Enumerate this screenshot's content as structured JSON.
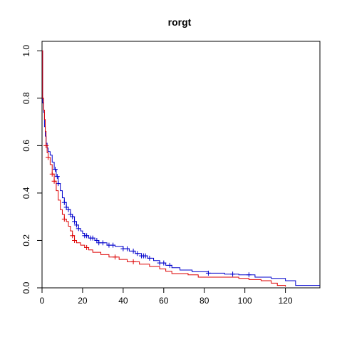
{
  "chart_data": {
    "type": "line",
    "subtype": "kaplan-meier",
    "title": "rorgt",
    "xlabel": "",
    "ylabel": "",
    "xlim": [
      0,
      137
    ],
    "ylim": [
      0,
      1.04
    ],
    "x_ticks": [
      0,
      20,
      40,
      60,
      80,
      100,
      120
    ],
    "y_ticks": [
      0.0,
      0.2,
      0.4,
      0.6,
      0.8,
      1.0
    ],
    "x_tick_labels": [
      "0",
      "20",
      "40",
      "60",
      "80",
      "100",
      "120"
    ],
    "y_tick_labels": [
      "0.0",
      "0.2",
      "0.4",
      "0.6",
      "0.8",
      "1.0"
    ],
    "grid": false,
    "series": [
      {
        "color": "#0000cc",
        "steps": [
          [
            0,
            1.0
          ],
          [
            0.3,
            0.78
          ],
          [
            0.8,
            0.74
          ],
          [
            1.2,
            0.68
          ],
          [
            1.6,
            0.64
          ],
          [
            2.0,
            0.61
          ],
          [
            2.5,
            0.59
          ],
          [
            3.0,
            0.575
          ],
          [
            4.0,
            0.56
          ],
          [
            5.0,
            0.53
          ],
          [
            6.0,
            0.5
          ],
          [
            7.0,
            0.47
          ],
          [
            8.0,
            0.44
          ],
          [
            9.0,
            0.41
          ],
          [
            10.0,
            0.38
          ],
          [
            11.0,
            0.36
          ],
          [
            12.0,
            0.34
          ],
          [
            13.0,
            0.33
          ],
          [
            14.0,
            0.31
          ],
          [
            15.0,
            0.3
          ],
          [
            16.0,
            0.28
          ],
          [
            17.0,
            0.265
          ],
          [
            18.0,
            0.25
          ],
          [
            19.0,
            0.24
          ],
          [
            20.0,
            0.23
          ],
          [
            21.0,
            0.22
          ],
          [
            23.0,
            0.21
          ],
          [
            26.0,
            0.2
          ],
          [
            28.0,
            0.19
          ],
          [
            32.0,
            0.18
          ],
          [
            36.0,
            0.175
          ],
          [
            40.0,
            0.165
          ],
          [
            43.0,
            0.155
          ],
          [
            46.0,
            0.145
          ],
          [
            49.0,
            0.135
          ],
          [
            52.0,
            0.125
          ],
          [
            55.0,
            0.115
          ],
          [
            58.0,
            0.105
          ],
          [
            61.0,
            0.095
          ],
          [
            64.0,
            0.085
          ],
          [
            68.0,
            0.075
          ],
          [
            74.0,
            0.068
          ],
          [
            82.0,
            0.062
          ],
          [
            90.0,
            0.058
          ],
          [
            97.0,
            0.055
          ],
          [
            105.0,
            0.045
          ],
          [
            113.0,
            0.04
          ],
          [
            120.0,
            0.03
          ],
          [
            125.0,
            0.01
          ],
          [
            137.0,
            0.01
          ]
        ],
        "censor_x": [
          6.5,
          7.5,
          8.0,
          11.0,
          12.0,
          13.0,
          14.0,
          15.0,
          16.0,
          17.0,
          18.0,
          21.0,
          22.0,
          24.0,
          25.0,
          27.0,
          28.0,
          30.0,
          33.0,
          35.0,
          40.0,
          42.0,
          45.0,
          47.0,
          49.0,
          50.0,
          51.0,
          53.0,
          58.0,
          60.0,
          63.0,
          82.0,
          94.0,
          102.0
        ]
      },
      {
        "color": "#dd0000",
        "steps": [
          [
            0,
            1.0
          ],
          [
            0.3,
            0.8
          ],
          [
            0.8,
            0.75
          ],
          [
            1.2,
            0.71
          ],
          [
            1.6,
            0.66
          ],
          [
            2.0,
            0.6
          ],
          [
            2.5,
            0.57
          ],
          [
            3.0,
            0.55
          ],
          [
            4.0,
            0.52
          ],
          [
            5.0,
            0.48
          ],
          [
            6.0,
            0.45
          ],
          [
            7.0,
            0.41
          ],
          [
            8.0,
            0.37
          ],
          [
            9.0,
            0.33
          ],
          [
            10.0,
            0.31
          ],
          [
            11.0,
            0.29
          ],
          [
            12.0,
            0.28
          ],
          [
            13.0,
            0.26
          ],
          [
            14.0,
            0.24
          ],
          [
            15.0,
            0.22
          ],
          [
            16.0,
            0.2
          ],
          [
            17.0,
            0.19
          ],
          [
            19.0,
            0.18
          ],
          [
            21.0,
            0.17
          ],
          [
            23.0,
            0.16
          ],
          [
            25.0,
            0.15
          ],
          [
            29.0,
            0.14
          ],
          [
            33.0,
            0.13
          ],
          [
            38.0,
            0.12
          ],
          [
            42.0,
            0.11
          ],
          [
            48.0,
            0.1
          ],
          [
            53.0,
            0.09
          ],
          [
            58.0,
            0.08
          ],
          [
            61.0,
            0.07
          ],
          [
            64.0,
            0.06
          ],
          [
            72.0,
            0.055
          ],
          [
            77.0,
            0.045
          ],
          [
            97.0,
            0.04
          ],
          [
            102.0,
            0.035
          ],
          [
            108.0,
            0.03
          ],
          [
            113.0,
            0.02
          ],
          [
            116.0,
            0.01
          ],
          [
            120.0,
            0.005
          ]
        ],
        "censor_x": [
          2.0,
          3.0,
          5.0,
          6.0,
          11.0,
          15.0,
          16.0,
          22.0,
          36.0,
          45.0
        ]
      }
    ]
  }
}
